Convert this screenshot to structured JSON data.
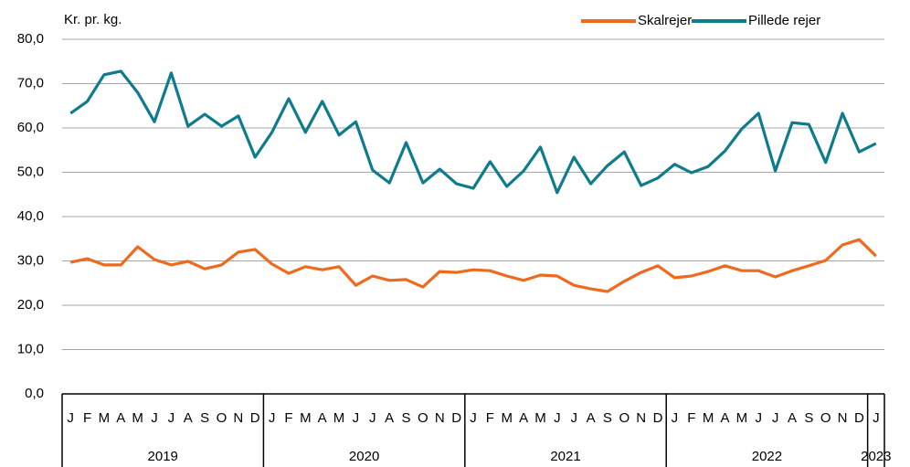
{
  "chart_data": {
    "type": "line",
    "y_label": "Kr. pr. kg.",
    "categories": [
      "J",
      "F",
      "M",
      "A",
      "M",
      "J",
      "J",
      "A",
      "S",
      "O",
      "N",
      "D",
      "J",
      "F",
      "M",
      "A",
      "M",
      "J",
      "J",
      "A",
      "S",
      "O",
      "N",
      "D",
      "J",
      "F",
      "M",
      "A",
      "M",
      "J",
      "J",
      "A",
      "S",
      "O",
      "N",
      "D",
      "J",
      "F",
      "M",
      "A",
      "M",
      "J",
      "J",
      "A",
      "S",
      "O",
      "N",
      "D",
      "J"
    ],
    "years": [
      "2019",
      "2020",
      "2021",
      "2022",
      "2023"
    ],
    "series": [
      {
        "name": "Skalrejer",
        "color": "#ee6a1e",
        "values": [
          29.7,
          30.5,
          29.1,
          29.1,
          33.2,
          30.3,
          29.1,
          29.9,
          28.2,
          29.1,
          32.0,
          32.6,
          29.3,
          27.2,
          28.7,
          28.0,
          28.7,
          24.5,
          26.6,
          25.6,
          25.8,
          24.1,
          27.6,
          27.4,
          28.0,
          27.8,
          26.6,
          25.6,
          26.8,
          26.6,
          24.5,
          23.7,
          23.1,
          25.4,
          27.4,
          28.9,
          26.2,
          26.6,
          27.6,
          28.9,
          27.8,
          27.8,
          26.4,
          27.8,
          28.9,
          30.1,
          33.6,
          34.8,
          31.1
        ]
      },
      {
        "name": "Pillede rejer",
        "color": "#0e7c8c",
        "values": [
          63.3,
          66.0,
          72.0,
          72.8,
          68.0,
          61.4,
          72.4,
          60.4,
          63.1,
          60.4,
          62.7,
          53.4,
          59.0,
          66.6,
          59.0,
          66.0,
          58.4,
          61.4,
          50.5,
          47.6,
          56.7,
          47.6,
          50.7,
          47.4,
          46.4,
          52.4,
          46.8,
          50.3,
          55.7,
          45.4,
          53.4,
          47.4,
          51.5,
          54.6,
          47.0,
          48.7,
          51.8,
          49.9,
          51.3,
          54.8,
          59.8,
          63.3,
          50.3,
          61.2,
          60.8,
          52.2,
          63.3,
          54.6,
          56.5
        ]
      }
    ],
    "ylim": [
      0,
      80
    ],
    "yticks": [
      {
        "value": 0,
        "label": "0,0"
      },
      {
        "value": 10,
        "label": "10,0"
      },
      {
        "value": 20,
        "label": "20,0"
      },
      {
        "value": 30,
        "label": "30,0"
      },
      {
        "value": 40,
        "label": "40,0"
      },
      {
        "value": 50,
        "label": "50,0"
      },
      {
        "value": 60,
        "label": "60,0"
      },
      {
        "value": 70,
        "label": "70,0"
      },
      {
        "value": 80,
        "label": "80,0"
      }
    ],
    "grid": true,
    "legend": "top-right"
  }
}
